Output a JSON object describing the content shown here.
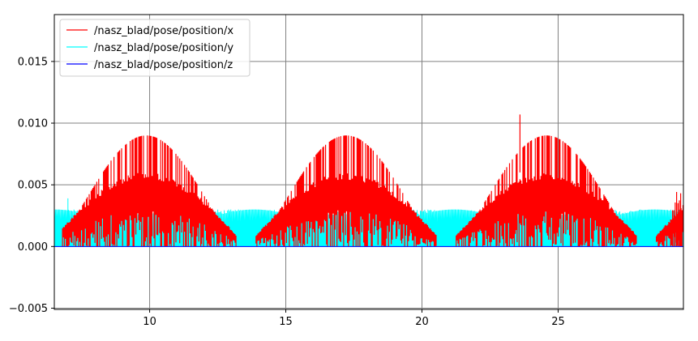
{
  "chart_data": {
    "type": "line",
    "title": "",
    "xlabel": "",
    "ylabel": "",
    "xlim": [
      6.5,
      29.6
    ],
    "ylim": [
      -0.0051,
      0.0188
    ],
    "grid": true,
    "legend_position": "top-left",
    "x_ticks": [
      10,
      15,
      20,
      25
    ],
    "x_tick_labels": [
      "10",
      "15",
      "20",
      "25"
    ],
    "y_ticks": [
      -0.005,
      0.0,
      0.005,
      0.01,
      0.015
    ],
    "y_tick_labels": [
      "−0.005",
      "0.000",
      "0.005",
      "0.010",
      "0.015"
    ],
    "series": [
      {
        "name": "/nasz_blad/pose/position/x",
        "color": "#ff0000",
        "x_range": [
          6.8,
          29.6
        ],
        "envelope_peaks_x": [
          9.9,
          17.2,
          24.7
        ],
        "envelope_peak_y": 0.009,
        "inner_peak_y": 0.006,
        "envelope_trough_y": 0.0,
        "envelope_troughs_x": [
          6.5,
          13.6,
          21.0,
          28.4
        ],
        "spike": {
          "x": 23.6,
          "y": 0.0107
        },
        "end_value_y": 0.0045
      },
      {
        "name": "/nasz_blad/pose/position/y",
        "color": "#00ffff",
        "x_range": [
          6.5,
          29.6
        ],
        "band_top_y": 0.003,
        "envelope_peaks_x": [
          6.5,
          13.6,
          21.0,
          28.3
        ],
        "envelope_peak_y": 0.003,
        "envelope_troughs_x": [
          9.9,
          17.2,
          24.7
        ],
        "envelope_trough_y": 0.0,
        "spike": {
          "x": 7.0,
          "y": 0.0039
        }
      },
      {
        "name": "/nasz_blad/pose/position/z",
        "color": "#0000ff",
        "x": [
          6.5,
          29.6
        ],
        "y": [
          0.0,
          0.0
        ]
      }
    ]
  }
}
